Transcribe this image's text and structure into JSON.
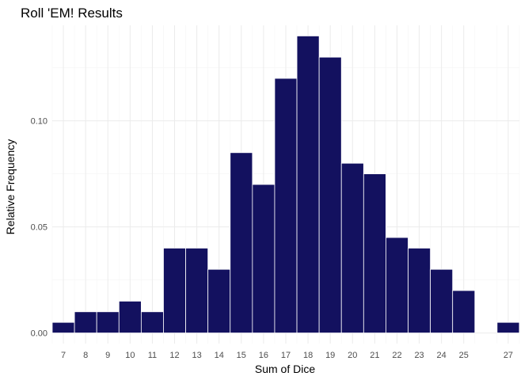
{
  "chart_data": {
    "type": "bar",
    "title": "Roll 'EM! Results",
    "xlabel": "Sum of Dice",
    "ylabel": "Relative Frequency",
    "x": [
      7,
      8,
      9,
      10,
      11,
      12,
      13,
      14,
      15,
      16,
      17,
      18,
      19,
      20,
      21,
      22,
      23,
      24,
      25,
      27
    ],
    "values": [
      0.005,
      0.01,
      0.01,
      0.015,
      0.01,
      0.04,
      0.04,
      0.03,
      0.085,
      0.07,
      0.12,
      0.14,
      0.13,
      0.08,
      0.075,
      0.045,
      0.04,
      0.03,
      0.02,
      0.005
    ],
    "xlim": [
      6.5,
      27.5
    ],
    "ylim": [
      -0.005,
      0.145
    ],
    "yticks": [
      0.0,
      0.05,
      0.1
    ],
    "ytick_labels": [
      "0.00",
      "0.05",
      "0.10"
    ],
    "xtick_labels": [
      "7",
      "8",
      "9",
      "10",
      "11",
      "12",
      "13",
      "14",
      "15",
      "16",
      "17",
      "18",
      "19",
      "20",
      "21",
      "22",
      "23",
      "24",
      "25",
      "27"
    ],
    "grid": true,
    "bar_color": "#13115f",
    "legend": "none"
  }
}
